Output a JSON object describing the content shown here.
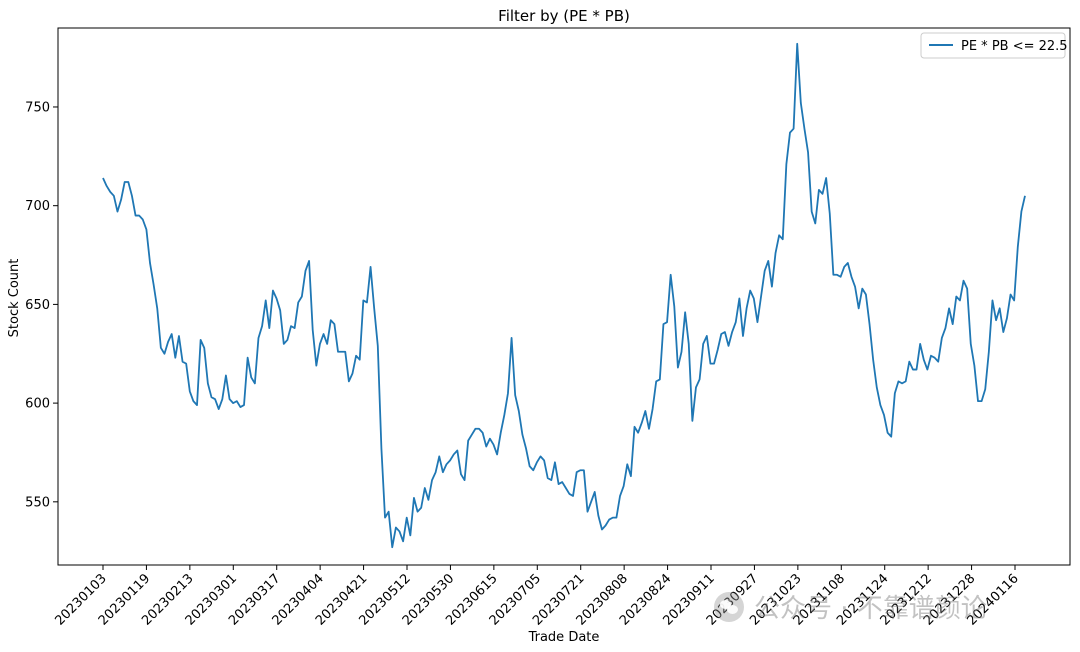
{
  "chart_data": {
    "type": "line",
    "title": "Filter by (PE * PB)",
    "xlabel": "Trade Date",
    "ylabel": "Stock Count",
    "ylim": [
      518,
      790
    ],
    "yticks": [
      550,
      600,
      650,
      700,
      750
    ],
    "xticks": [
      "20230103",
      "20230119",
      "20230213",
      "20230301",
      "20230317",
      "20230404",
      "20230421",
      "20230512",
      "20230530",
      "20230615",
      "20230705",
      "20230721",
      "20230808",
      "20230824",
      "20230911",
      "20230927",
      "20231023",
      "20231108",
      "20231124",
      "20231212",
      "20231228",
      "20240116"
    ],
    "grid": false,
    "legend_position": "top-right",
    "series": [
      {
        "name": "PE * PB <= 22.5",
        "color": "#1f77b4",
        "values": [
          714,
          710,
          707,
          705,
          697,
          703,
          712,
          712,
          705,
          695,
          695,
          693,
          688,
          671,
          660,
          648,
          628,
          625,
          631,
          635,
          623,
          634,
          621,
          620,
          606,
          601,
          599,
          632,
          628,
          610,
          603,
          602,
          597,
          602,
          614,
          602,
          600,
          601,
          598,
          599,
          623,
          613,
          610,
          633,
          639,
          652,
          638,
          657,
          653,
          647,
          630,
          632,
          639,
          638,
          651,
          654,
          667,
          672,
          637,
          619,
          630,
          635,
          630,
          642,
          640,
          626,
          626,
          626,
          611,
          615,
          624,
          622,
          652,
          651,
          669,
          648,
          629,
          577,
          542,
          545,
          527,
          537,
          535,
          530,
          542,
          533,
          552,
          545,
          547,
          557,
          551,
          561,
          565,
          573,
          565,
          569,
          571,
          574,
          576,
          564,
          561,
          581,
          584,
          587,
          587,
          585,
          578,
          582,
          579,
          574,
          585,
          594,
          605,
          633,
          604,
          596,
          584,
          577,
          568,
          566,
          570,
          573,
          571,
          562,
          561,
          570,
          559,
          560,
          557,
          554,
          553,
          565,
          566,
          566,
          545,
          550,
          555,
          543,
          536,
          538,
          541,
          542,
          542,
          553,
          558,
          569,
          563,
          588,
          585,
          590,
          596,
          587,
          597,
          611,
          612,
          640,
          641,
          665,
          649,
          618,
          626,
          646,
          630,
          591,
          608,
          612,
          630,
          634,
          620,
          620,
          627,
          635,
          636,
          629,
          636,
          641,
          653,
          634,
          648,
          657,
          653,
          641,
          654,
          667,
          672,
          659,
          676,
          685,
          683,
          721,
          737,
          739,
          782,
          752,
          739,
          727,
          697,
          691,
          708,
          706,
          714,
          696,
          665,
          665,
          664,
          669,
          671,
          664,
          659,
          648,
          658,
          655,
          640,
          622,
          608,
          599,
          594,
          585,
          583,
          605,
          611,
          610,
          611,
          621,
          617,
          617,
          630,
          622,
          617,
          624,
          623,
          621,
          633,
          638,
          648,
          640,
          654,
          652,
          662,
          658,
          630,
          619,
          601,
          601,
          607,
          626,
          652,
          642,
          648,
          636,
          643,
          655,
          652,
          679,
          697,
          705
        ]
      }
    ]
  },
  "watermark": {
    "account_label": "公众号 · 不靠谱颜论"
  }
}
